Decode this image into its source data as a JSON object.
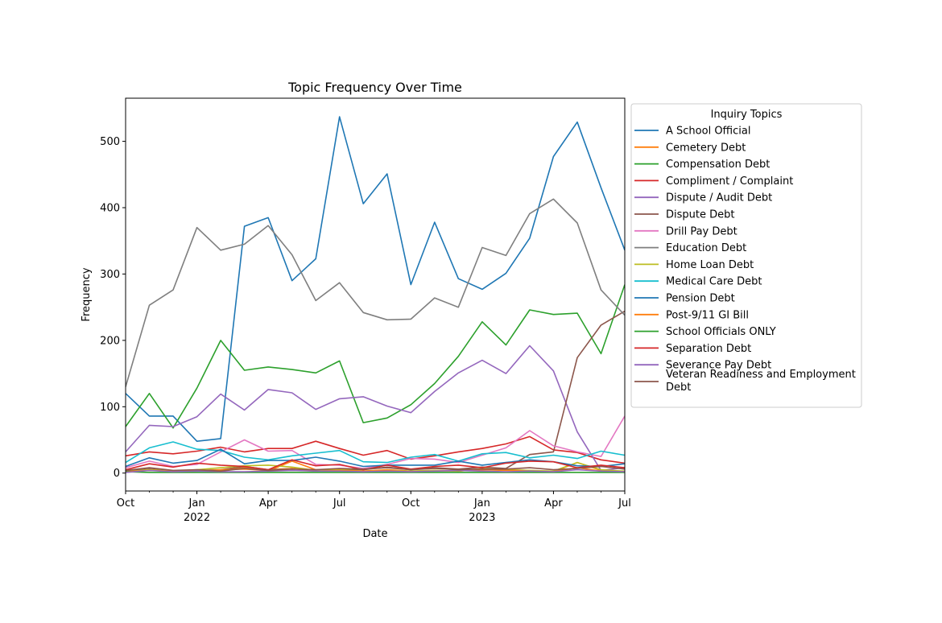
{
  "chart_data": {
    "type": "line",
    "title": "Topic Frequency Over Time",
    "xlabel": "Date",
    "ylabel": "Frequency",
    "ylim": [
      -27,
      565
    ],
    "y_ticks": [
      0,
      100,
      200,
      300,
      400,
      500
    ],
    "x_tick_labels": [
      {
        "label": "Oct",
        "sub": "",
        "index": 0
      },
      {
        "label": "Jan",
        "sub": "2022",
        "index": 3
      },
      {
        "label": "Apr",
        "sub": "",
        "index": 6
      },
      {
        "label": "Jul",
        "sub": "",
        "index": 9
      },
      {
        "label": "Oct",
        "sub": "",
        "index": 12
      },
      {
        "label": "Jan",
        "sub": "2023",
        "index": 15
      },
      {
        "label": "Apr",
        "sub": "",
        "index": 18
      },
      {
        "label": "Jul",
        "sub": "",
        "index": 21
      }
    ],
    "x": [
      "2021-10",
      "2021-11",
      "2021-12",
      "2022-01",
      "2022-02",
      "2022-03",
      "2022-04",
      "2022-05",
      "2022-06",
      "2022-07",
      "2022-08",
      "2022-09",
      "2022-10",
      "2022-11",
      "2022-12",
      "2023-01",
      "2023-02",
      "2023-03",
      "2023-04",
      "2023-05",
      "2023-06",
      "2023-07"
    ],
    "legend_title": "Inquiry Topics",
    "legend_placement": "outside-right",
    "series": [
      {
        "name": "A School Official",
        "color": "#1f77b4",
        "values": [
          120,
          86,
          86,
          48,
          52,
          372,
          385,
          290,
          323,
          537,
          406,
          451,
          284,
          378,
          293,
          277,
          301,
          354,
          477,
          529,
          430,
          336
        ]
      },
      {
        "name": "Cemetery Debt",
        "color": "#ff7f0e",
        "values": [
          3,
          5,
          2,
          3,
          4,
          8,
          3,
          18,
          5,
          4,
          3,
          5,
          3,
          4,
          3,
          6,
          5,
          4,
          2,
          16,
          4,
          2
        ]
      },
      {
        "name": "Compensation Debt",
        "color": "#2ca02c",
        "values": [
          70,
          120,
          68,
          128,
          200,
          155,
          160,
          156,
          151,
          169,
          76,
          83,
          103,
          135,
          176,
          228,
          193,
          246,
          239,
          241,
          180,
          284
        ]
      },
      {
        "name": "Compliment / Complaint",
        "color": "#d62728",
        "values": [
          26,
          32,
          29,
          33,
          39,
          32,
          37,
          37,
          48,
          37,
          27,
          34,
          21,
          26,
          32,
          37,
          44,
          55,
          35,
          31,
          20,
          15
        ]
      },
      {
        "name": "Dispute / Audit Debt",
        "color": "#9467bd",
        "values": [
          32,
          72,
          70,
          85,
          119,
          95,
          126,
          121,
          96,
          112,
          115,
          101,
          91,
          123,
          151,
          170,
          150,
          192,
          154,
          62,
          4,
          8
        ]
      },
      {
        "name": "Dispute Debt",
        "color": "#8c564b",
        "values": [
          3,
          6,
          3,
          4,
          5,
          10,
          5,
          7,
          4,
          6,
          5,
          9,
          5,
          8,
          6,
          9,
          7,
          28,
          32,
          174,
          223,
          244
        ]
      },
      {
        "name": "Drill Pay Debt",
        "color": "#e377c2",
        "values": [
          8,
          18,
          10,
          13,
          32,
          50,
          33,
          34,
          13,
          12,
          7,
          13,
          22,
          21,
          16,
          27,
          38,
          64,
          41,
          32,
          25,
          86
        ]
      },
      {
        "name": "Education Debt",
        "color": "#7f7f7f",
        "values": [
          130,
          253,
          276,
          370,
          336,
          345,
          373,
          329,
          260,
          287,
          242,
          231,
          232,
          264,
          250,
          340,
          328,
          391,
          413,
          377,
          276,
          238
        ]
      },
      {
        "name": "Home Loan Debt",
        "color": "#bcbd22",
        "values": [
          2,
          5,
          3,
          5,
          8,
          11,
          12,
          9,
          4,
          5,
          3,
          4,
          3,
          4,
          3,
          7,
          5,
          4,
          3,
          16,
          5,
          3
        ]
      },
      {
        "name": "Medical Care Debt",
        "color": "#17becf",
        "values": [
          16,
          38,
          47,
          36,
          34,
          24,
          20,
          26,
          30,
          34,
          17,
          16,
          24,
          28,
          18,
          29,
          31,
          23,
          27,
          22,
          33,
          27
        ]
      },
      {
        "name": "Pension Debt",
        "color": "#1f77b4",
        "values": [
          10,
          23,
          15,
          19,
          36,
          14,
          19,
          19,
          24,
          18,
          10,
          12,
          12,
          12,
          18,
          12,
          16,
          20,
          17,
          11,
          10,
          14
        ]
      },
      {
        "name": "Post-9/11 GI Bill",
        "color": "#ff7f0e",
        "values": [
          2,
          4,
          3,
          3,
          5,
          6,
          4,
          7,
          3,
          4,
          3,
          4,
          2,
          3,
          4,
          5,
          4,
          3,
          2,
          8,
          3,
          2
        ]
      },
      {
        "name": "School Officials ONLY",
        "color": "#2ca02c",
        "values": [
          2,
          1,
          1,
          1,
          1,
          1,
          1,
          1,
          1,
          1,
          1,
          1,
          1,
          1,
          1,
          1,
          1,
          1,
          1,
          1,
          1,
          1
        ]
      },
      {
        "name": "Separation Debt",
        "color": "#d62728",
        "values": [
          5,
          14,
          9,
          15,
          12,
          10,
          5,
          20,
          11,
          13,
          5,
          12,
          6,
          10,
          12,
          8,
          15,
          18,
          17,
          8,
          12,
          8
        ]
      },
      {
        "name": "Severance Pay Debt",
        "color": "#9467bd",
        "values": [
          1,
          4,
          2,
          3,
          2,
          2,
          3,
          4,
          3,
          3,
          2,
          3,
          2,
          3,
          4,
          3,
          2,
          3,
          2,
          5,
          3,
          2
        ]
      },
      {
        "name": "Veteran Readiness and Employment Debt",
        "color": "#8c564b",
        "values": [
          4,
          8,
          4,
          5,
          3,
          7,
          4,
          6,
          5,
          7,
          6,
          8,
          5,
          7,
          5,
          6,
          6,
          8,
          5,
          7,
          10,
          6
        ]
      }
    ]
  }
}
